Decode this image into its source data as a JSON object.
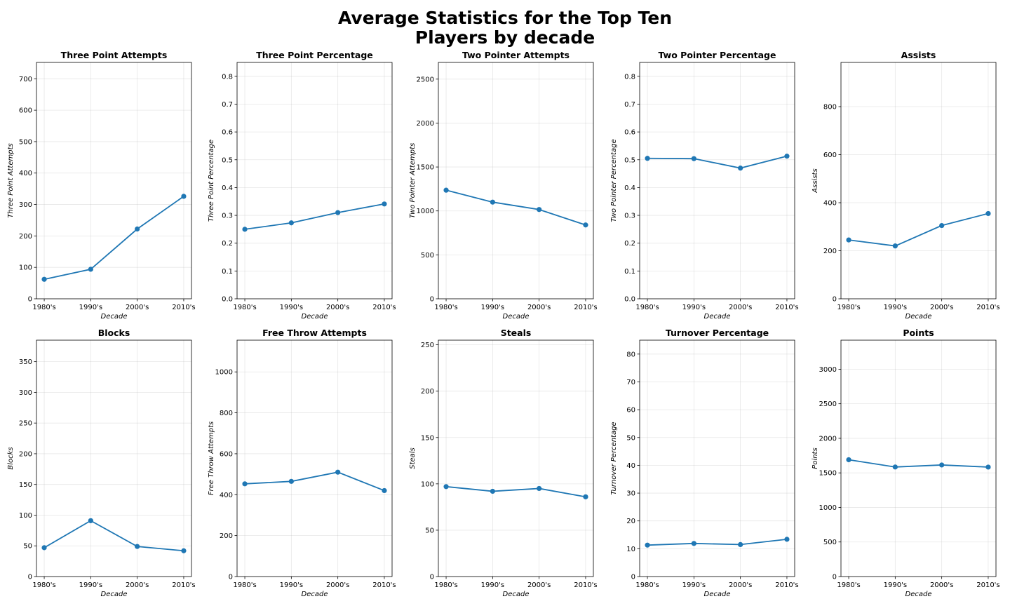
{
  "figure": {
    "title_line1": "Average Statistics for the Top Ten",
    "title_line2": "Players by decade",
    "line_color": "#1f77b4"
  },
  "chart_data": [
    {
      "type": "line",
      "title": "Three Point Attempts",
      "xlabel": "Decade",
      "ylabel": "Three Point Attempts",
      "categories": [
        "1980's",
        "1990's",
        "2000's",
        "2010's"
      ],
      "series": [
        {
          "values": [
            62,
            94,
            222,
            326
          ]
        }
      ],
      "ylim": [
        0,
        752
      ],
      "yticks": [
        0,
        100,
        200,
        300,
        400,
        500,
        600,
        700
      ],
      "grid": true
    },
    {
      "type": "line",
      "title": "Three Point Percentage",
      "xlabel": "Decade",
      "ylabel": "Three Point Percentage",
      "categories": [
        "1980's",
        "1990's",
        "2000's",
        "2010's"
      ],
      "series": [
        {
          "values": [
            0.25,
            0.273,
            0.31,
            0.341
          ]
        }
      ],
      "ylim": [
        0,
        0.85
      ],
      "yticks": [
        0.0,
        0.1,
        0.2,
        0.3,
        0.4,
        0.5,
        0.6,
        0.7,
        0.8
      ],
      "tick_decimals": 1,
      "grid": true
    },
    {
      "type": "line",
      "title": "Two Pointer Attempts",
      "xlabel": "Decade",
      "ylabel": "Two Pointer Attempts",
      "categories": [
        "1980's",
        "1990's",
        "2000's",
        "2010's"
      ],
      "series": [
        {
          "values": [
            1236,
            1100,
            1016,
            840
          ]
        }
      ],
      "ylim": [
        0,
        2690
      ],
      "yticks": [
        0,
        500,
        1000,
        1500,
        2000,
        2500
      ],
      "grid": true
    },
    {
      "type": "line",
      "title": "Two Pointer Percentage",
      "xlabel": "Decade",
      "ylabel": "Two Pointer Percentage",
      "categories": [
        "1980's",
        "1990's",
        "2000's",
        "2010's"
      ],
      "series": [
        {
          "values": [
            0.505,
            0.504,
            0.47,
            0.513
          ]
        }
      ],
      "ylim": [
        0,
        0.85
      ],
      "yticks": [
        0.0,
        0.1,
        0.2,
        0.3,
        0.4,
        0.5,
        0.6,
        0.7,
        0.8
      ],
      "tick_decimals": 1,
      "grid": true
    },
    {
      "type": "line",
      "title": "Assists",
      "xlabel": "Decade",
      "ylabel": "Assists",
      "categories": [
        "1980's",
        "1990's",
        "2000's",
        "2010's"
      ],
      "series": [
        {
          "values": [
            245,
            220,
            305,
            355
          ]
        }
      ],
      "ylim": [
        0,
        984
      ],
      "yticks": [
        0,
        200,
        400,
        600,
        800
      ],
      "grid": true
    },
    {
      "type": "line",
      "title": "Blocks",
      "xlabel": "Decade",
      "ylabel": "Blocks",
      "categories": [
        "1980's",
        "1990's",
        "2000's",
        "2010's"
      ],
      "series": [
        {
          "values": [
            47,
            91,
            49,
            42
          ]
        }
      ],
      "ylim": [
        0,
        385
      ],
      "yticks": [
        0,
        50,
        100,
        150,
        200,
        250,
        300,
        350
      ],
      "grid": true
    },
    {
      "type": "line",
      "title": "Free Throw Attempts",
      "xlabel": "Decade",
      "ylabel": "Free Throw Attempts",
      "categories": [
        "1980's",
        "1990's",
        "2000's",
        "2010's"
      ],
      "series": [
        {
          "values": [
            453,
            465,
            510,
            420
          ]
        }
      ],
      "ylim": [
        0,
        1155
      ],
      "yticks": [
        0,
        200,
        400,
        600,
        800,
        1000
      ],
      "grid": true
    },
    {
      "type": "line",
      "title": "Steals",
      "xlabel": "Decade",
      "ylabel": "Steals",
      "categories": [
        "1980's",
        "1990's",
        "2000's",
        "2010's"
      ],
      "series": [
        {
          "values": [
            97,
            92,
            95,
            86
          ]
        }
      ],
      "ylim": [
        0,
        255
      ],
      "yticks": [
        0,
        50,
        100,
        150,
        200,
        250
      ],
      "grid": true
    },
    {
      "type": "line",
      "title": "Turnover Percentage",
      "xlabel": "Decade",
      "ylabel": "Turnover Percentage",
      "categories": [
        "1980's",
        "1990's",
        "2000's",
        "2010's"
      ],
      "series": [
        {
          "values": [
            11.3,
            11.9,
            11.5,
            13.4
          ]
        }
      ],
      "ylim": [
        0,
        85
      ],
      "yticks": [
        0,
        10,
        20,
        30,
        40,
        50,
        60,
        70,
        80
      ],
      "grid": true
    },
    {
      "type": "line",
      "title": "Points",
      "xlabel": "Decade",
      "ylabel": "Points",
      "categories": [
        "1980's",
        "1990's",
        "2000's",
        "2010's"
      ],
      "series": [
        {
          "values": [
            1690,
            1585,
            1614,
            1584
          ]
        }
      ],
      "ylim": [
        0,
        3420
      ],
      "yticks": [
        0,
        500,
        1000,
        1500,
        2000,
        2500,
        3000
      ],
      "grid": true
    }
  ]
}
